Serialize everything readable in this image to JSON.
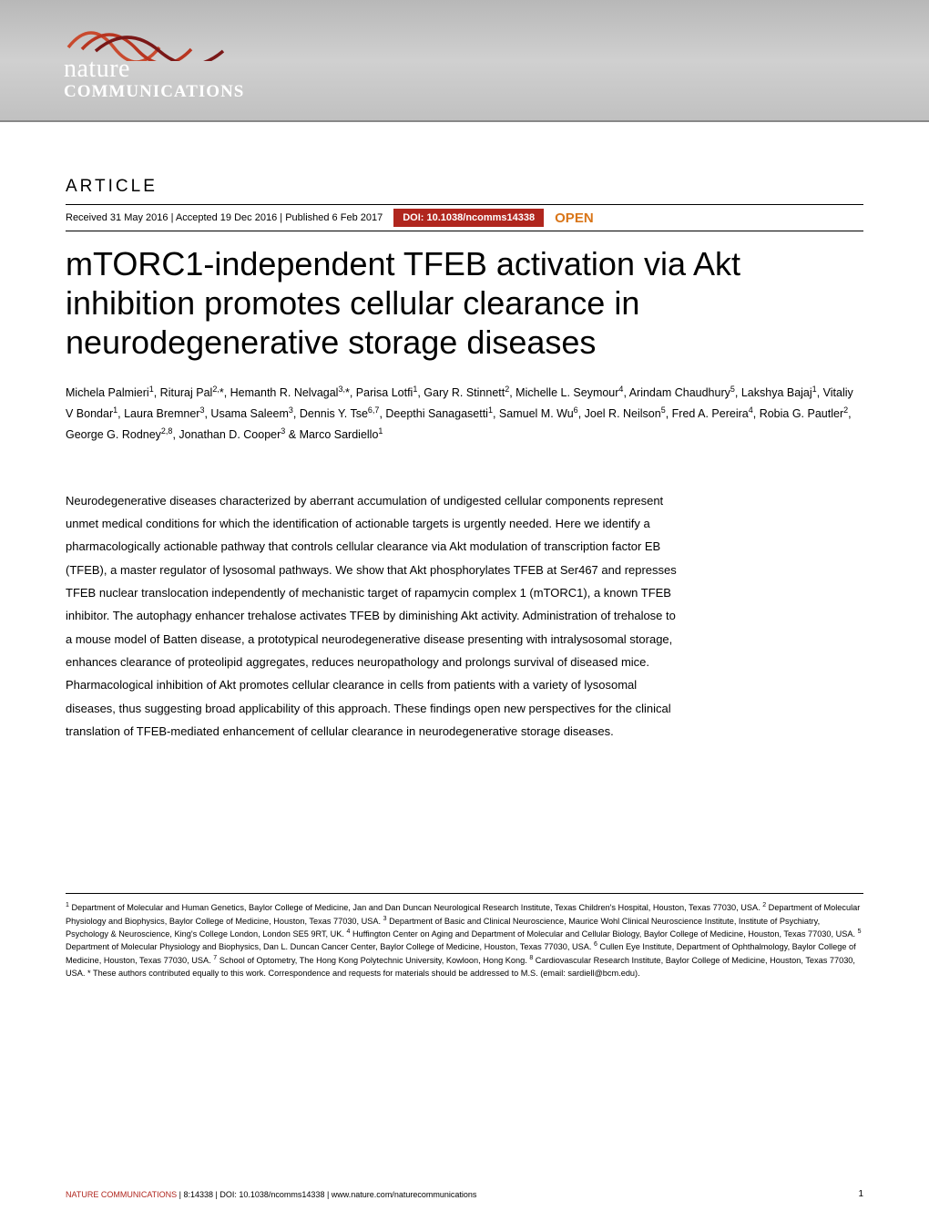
{
  "journal": {
    "name_line1": "nature",
    "name_line2": "COMMUNICATIONS",
    "logo_top_color": "#c94a2e",
    "logo_bottom_color": "#7a1818"
  },
  "header": {
    "gradient_start": "#b8b8b8",
    "gradient_mid": "#d0d0d0",
    "gradient_end": "#c0c0c0"
  },
  "article_label": "ARTICLE",
  "dateline": {
    "received": "Received 31 May 2016",
    "accepted": "Accepted 19 Dec 2016",
    "published": "Published 6 Feb 2017",
    "separator": " | "
  },
  "doi": {
    "label": "DOI: 10.1038/ncomms14338",
    "badge_bg": "#b0261e",
    "badge_color": "#ffffff"
  },
  "open_access": {
    "label": "OPEN",
    "color": "#d97518"
  },
  "title": "mTORC1-independent TFEB activation via Akt inhibition promotes cellular clearance in neurodegenerative storage diseases",
  "authors_html": "Michela Palmieri<sup>1</sup>, Rituraj Pal<sup>2,</sup>*, Hemanth R. Nelvagal<sup>3,</sup>*, Parisa Lotfi<sup>1</sup>, Gary R. Stinnett<sup>2</sup>, Michelle L. Seymour<sup>4</sup>, Arindam Chaudhury<sup>5</sup>, Lakshya Bajaj<sup>1</sup>, Vitaliy V Bondar<sup>1</sup>, Laura Bremner<sup>3</sup>, Usama Saleem<sup>3</sup>, Dennis Y. Tse<sup>6,7</sup>, Deepthi Sanagasetti<sup>1</sup>, Samuel M. Wu<sup>6</sup>, Joel R. Neilson<sup>5</sup>, Fred A. Pereira<sup>4</sup>, Robia G. Pautler<sup>2</sup>, George G. Rodney<sup>2,8</sup>, Jonathan D. Cooper<sup>3</sup> & Marco Sardiello<sup>1</sup>",
  "abstract": "Neurodegenerative diseases characterized by aberrant accumulation of undigested cellular components represent unmet medical conditions for which the identification of actionable targets is urgently needed. Here we identify a pharmacologically actionable pathway that controls cellular clearance via Akt modulation of transcription factor EB (TFEB), a master regulator of lysosomal pathways. We show that Akt phosphorylates TFEB at Ser467 and represses TFEB nuclear translocation independently of mechanistic target of rapamycin complex 1 (mTORC1), a known TFEB inhibitor. The autophagy enhancer trehalose activates TFEB by diminishing Akt activity. Administration of trehalose to a mouse model of Batten disease, a prototypical neurodegenerative disease presenting with intralysosomal storage, enhances clearance of proteolipid aggregates, reduces neuropathology and prolongs survival of diseased mice. Pharmacological inhibition of Akt promotes cellular clearance in cells from patients with a variety of lysosomal diseases, thus suggesting broad applicability of this approach. These findings open new perspectives for the clinical translation of TFEB-mediated enhancement of cellular clearance in neurodegenerative storage diseases.",
  "affiliations_html": "<sup>1</sup> Department of Molecular and Human Genetics, Baylor College of Medicine, Jan and Dan Duncan Neurological Research Institute, Texas Children's Hospital, Houston, Texas 77030, USA. <sup>2</sup> Department of Molecular Physiology and Biophysics, Baylor College of Medicine, Houston, Texas 77030, USA. <sup>3</sup> Department of Basic and Clinical Neuroscience, Maurice Wohl Clinical Neuroscience Institute, Institute of Psychiatry, Psychology & Neuroscience, King's College London, London SE5 9RT, UK. <sup>4</sup> Huffington Center on Aging and Department of Molecular and Cellular Biology, Baylor College of Medicine, Houston, Texas 77030, USA. <sup>5</sup> Department of Molecular Physiology and Biophysics, Dan L. Duncan Cancer Center, Baylor College of Medicine, Houston, Texas 77030, USA. <sup>6</sup> Cullen Eye Institute, Department of Ophthalmology, Baylor College of Medicine, Houston, Texas 77030, USA. <sup>7</sup> School of Optometry, The Hong Kong Polytechnic University, Kowloon, Hong Kong. <sup>8</sup> Cardiovascular Research Institute, Baylor College of Medicine, Houston, Texas 77030, USA. * These authors contributed equally to this work. Correspondence and requests for materials should be addressed to M.S. (email: sardiell@bcm.edu).",
  "footer": {
    "journal_name": "NATURE COMMUNICATIONS",
    "citation": " | 8:14338 | DOI: 10.1038/ncomms14338 | www.nature.com/naturecommunications",
    "page_number": "1",
    "journal_color": "#b0261e"
  },
  "typography": {
    "title_fontsize": 36,
    "title_weight": 300,
    "authors_fontsize": 12.5,
    "abstract_fontsize": 13,
    "affiliations_fontsize": 9.2,
    "footer_fontsize": 9
  },
  "colors": {
    "background": "#ffffff",
    "text": "#000000",
    "rule": "#000000"
  }
}
